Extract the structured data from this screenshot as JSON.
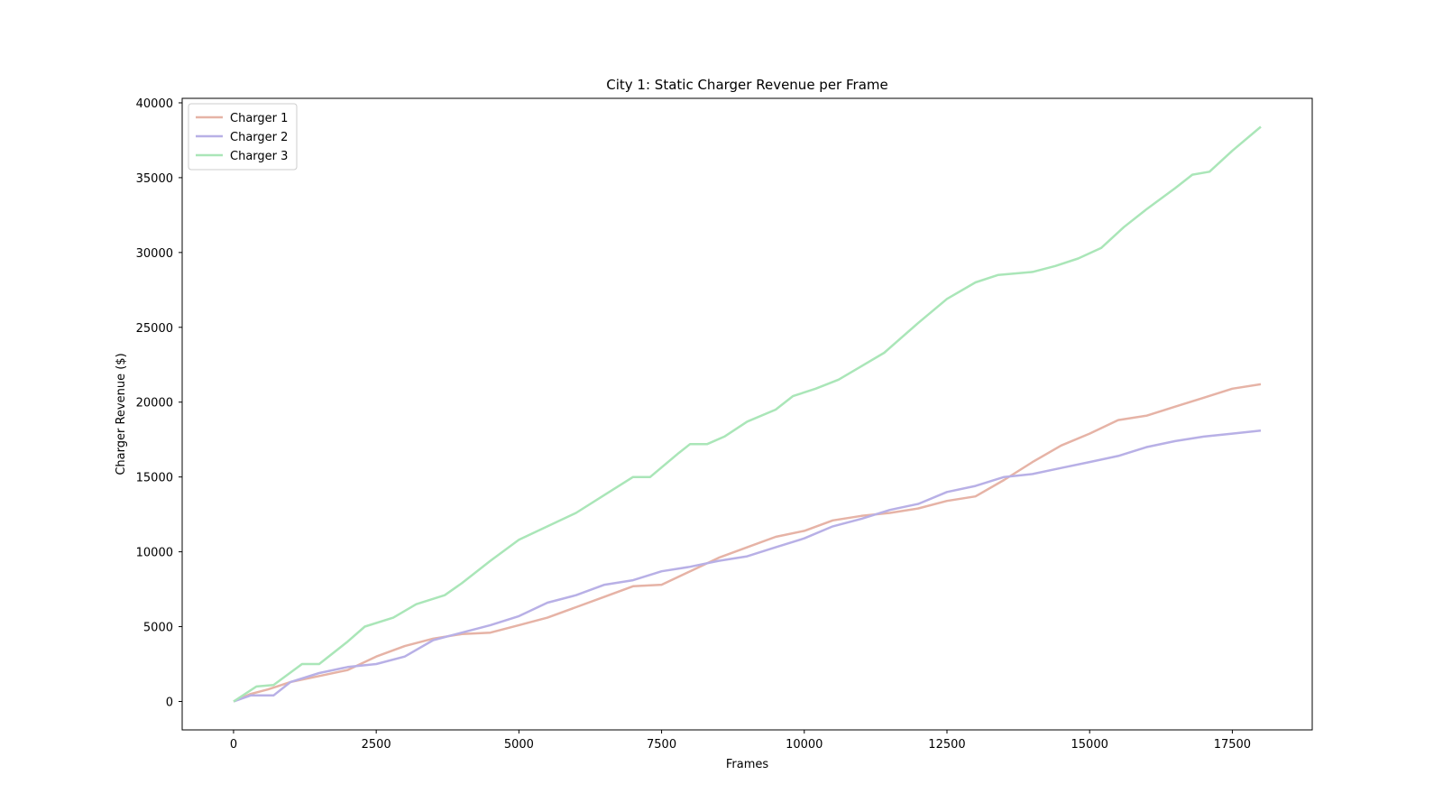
{
  "chart_data": {
    "type": "line",
    "title": "City 1: Static Charger Revenue per Frame",
    "xlabel": "Frames",
    "ylabel": "Charger Revenue ($)",
    "xlim": [
      -900,
      18900
    ],
    "ylim": [
      -1900,
      40300
    ],
    "xticks": [
      0,
      2500,
      5000,
      7500,
      10000,
      12500,
      15000,
      17500
    ],
    "yticks": [
      0,
      5000,
      10000,
      15000,
      20000,
      25000,
      30000,
      35000,
      40000
    ],
    "grid": false,
    "legend_position": "top-left",
    "series": [
      {
        "name": "Charger 1",
        "color": "#e6b3a6",
        "x": [
          0,
          300,
          600,
          1000,
          1500,
          2000,
          2500,
          3000,
          3500,
          4000,
          4500,
          5000,
          5500,
          6000,
          6500,
          7000,
          7500,
          8000,
          8500,
          9000,
          9500,
          10000,
          10500,
          11000,
          11500,
          12000,
          12500,
          13000,
          13500,
          14000,
          14500,
          15000,
          15500,
          16000,
          16500,
          17000,
          17500,
          18000
        ],
        "y": [
          0,
          500,
          800,
          1300,
          1700,
          2100,
          3000,
          3700,
          4200,
          4500,
          4600,
          5100,
          5600,
          6300,
          7000,
          7700,
          7800,
          8700,
          9600,
          10300,
          11000,
          11400,
          12100,
          12400,
          12600,
          12900,
          13400,
          13700,
          14800,
          16000,
          17100,
          17900,
          18800,
          19100,
          19700,
          20300,
          20900,
          21200
        ]
      },
      {
        "name": "Charger 2",
        "color": "#b8b0e6",
        "x": [
          0,
          300,
          700,
          1000,
          1500,
          2000,
          2500,
          3000,
          3500,
          4000,
          4500,
          5000,
          5500,
          6000,
          6500,
          7000,
          7500,
          8000,
          8500,
          9000,
          9500,
          10000,
          10500,
          11000,
          11500,
          12000,
          12500,
          13000,
          13500,
          14000,
          14500,
          15000,
          15500,
          16000,
          16500,
          17000,
          17500,
          18000
        ],
        "y": [
          0,
          400,
          400,
          1300,
          1900,
          2300,
          2500,
          3000,
          4100,
          4600,
          5100,
          5700,
          6600,
          7100,
          7800,
          8100,
          8700,
          9000,
          9400,
          9700,
          10300,
          10900,
          11700,
          12200,
          12800,
          13200,
          14000,
          14400,
          15000,
          15200,
          15600,
          16000,
          16400,
          17000,
          17400,
          17700,
          17900,
          18100
        ]
      },
      {
        "name": "Charger 3",
        "color": "#aae6b8",
        "x": [
          0,
          400,
          700,
          1200,
          1500,
          2000,
          2300,
          2800,
          3200,
          3700,
          4000,
          4500,
          5000,
          5500,
          6000,
          6500,
          7000,
          7300,
          7800,
          8000,
          8300,
          8600,
          9000,
          9500,
          9800,
          10200,
          10600,
          11000,
          11400,
          12000,
          12500,
          13000,
          13400,
          14000,
          14400,
          14800,
          15200,
          15600,
          16000,
          16500,
          16800,
          17100,
          17500,
          18000
        ],
        "y": [
          0,
          1000,
          1100,
          2500,
          2500,
          4000,
          5000,
          5600,
          6500,
          7100,
          7900,
          9400,
          10800,
          11700,
          12600,
          13800,
          15000,
          15000,
          16600,
          17200,
          17200,
          17700,
          18700,
          19500,
          20400,
          20900,
          21500,
          22400,
          23300,
          25300,
          26900,
          28000,
          28500,
          28700,
          29100,
          29600,
          30300,
          31700,
          32900,
          34300,
          35200,
          35400,
          36800,
          38400
        ]
      }
    ]
  }
}
